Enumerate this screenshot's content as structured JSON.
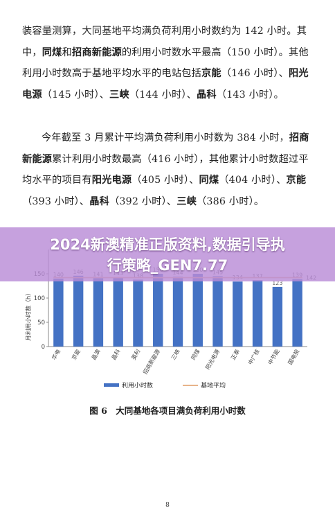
{
  "paragraph1": {
    "s1": "装容量测算，大同基地平均满负荷利用小时数约为 142 小时。其中，",
    "tongmei": "同煤",
    "s2": "和",
    "zhaoshang": "招商新能源",
    "s3": "的利用小时数水平最高（150 小时）。其他利用小时数高于基地平均水平的电站包括",
    "jingneng": "京能",
    "s4": "（146 小时）、",
    "yangguang": "阳光电源",
    "s5": "（145 小时）、",
    "sanxia": "三峡",
    "s6": "（144 小时）、",
    "jingke": "晶科",
    "s7": "（143 小时）。"
  },
  "paragraph2": {
    "s1": "今年截至 3 月累计平均满负荷利用小时数为 384 小时，",
    "zhaoshang": "招商新能源",
    "s2": "累计利用小时数最高（416 小时），其他累计小时数超过平均水平的项目有",
    "yangguang": "阳光电源",
    "s3": "（405 小时）、",
    "tongmei": "同煤",
    "s4": "（404 小时）、",
    "jingneng": "京能",
    "s5": "（393 小时）、",
    "jingke": "晶科",
    "s6": "（392 小时）、",
    "sanxia": "三峡",
    "s7": "（386 小时）。"
  },
  "banner": {
    "line1": "2024新澳精准正版资料,数据引导执",
    "line2": "行策略_GEN7.77"
  },
  "figure": {
    "caption": "图 6　大同基地各项目满负荷利用小时数",
    "page_number": "8"
  },
  "chart_data": {
    "type": "bar",
    "ylabel": "月利用小时数（h）",
    "ylim": [
      0,
      200
    ],
    "yticks": [
      0,
      50,
      100,
      150
    ],
    "categories": [
      "华电",
      "京能",
      "晶澳",
      "晶科",
      "英利",
      "招商新能源",
      "三峡",
      "同煤",
      "阳光电源",
      "正泰",
      "中广核",
      "中节能",
      "国电投"
    ],
    "series": [
      {
        "name": "利用小时数",
        "values": [
          140,
          146,
          141,
          143,
          138,
          150,
          144,
          150,
          145,
          134,
          137,
          123,
          139
        ]
      },
      {
        "name": "基地平均",
        "values": [
          142,
          142,
          142,
          142,
          142,
          142,
          142,
          142,
          142,
          142,
          142,
          142,
          142
        ]
      }
    ],
    "bar_labels": [
      "140",
      "146",
      "141",
      "143",
      "138",
      "150",
      "144",
      "150",
      "145",
      "134",
      "137",
      "123",
      "139"
    ],
    "avg_label": "142",
    "colors": {
      "bar": "#4472c4",
      "avg": "#e8b38a"
    },
    "legend": [
      "利用小时数",
      "基地平均"
    ],
    "legend_position": "bottom",
    "grid": false
  }
}
